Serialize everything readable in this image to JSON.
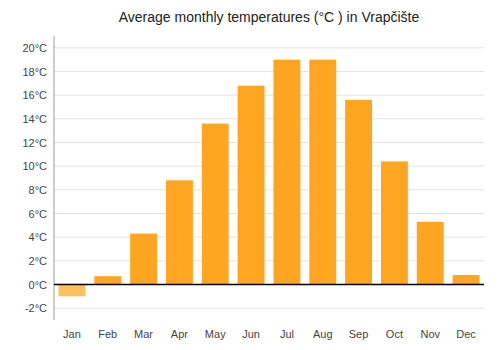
{
  "chart_data": {
    "type": "bar",
    "title": "Average monthly temperatures (°C ) in Vrapčište",
    "categories": [
      "Jan",
      "Feb",
      "Mar",
      "Apr",
      "May",
      "Jun",
      "Jul",
      "Aug",
      "Sep",
      "Oct",
      "Nov",
      "Dec"
    ],
    "values": [
      -1.0,
      0.7,
      4.3,
      8.8,
      13.6,
      16.8,
      19.0,
      19.0,
      15.6,
      10.4,
      5.3,
      0.8
    ],
    "colors": [
      "#FFC060",
      "#FFA520",
      "#FFA520",
      "#FFA520",
      "#FFA520",
      "#FFA520",
      "#FFA520",
      "#FFA520",
      "#FFA520",
      "#FFA520",
      "#FFA520",
      "#FFA520"
    ],
    "ylim": [
      -3,
      21
    ],
    "yticks": [
      {
        "value": -2,
        "label": "-2°C"
      },
      {
        "value": 0,
        "label": "0°C"
      },
      {
        "value": 2,
        "label": "2°C"
      },
      {
        "value": 4,
        "label": "4°C"
      },
      {
        "value": 6,
        "label": "6°C"
      },
      {
        "value": 8,
        "label": "8°C"
      },
      {
        "value": 10,
        "label": "10°C"
      },
      {
        "value": 12,
        "label": "12°C"
      },
      {
        "value": 14,
        "label": "14°C"
      },
      {
        "value": 16,
        "label": "16°C"
      },
      {
        "value": 18,
        "label": "18°C"
      },
      {
        "value": 20,
        "label": "20°C"
      }
    ],
    "grid": true
  }
}
